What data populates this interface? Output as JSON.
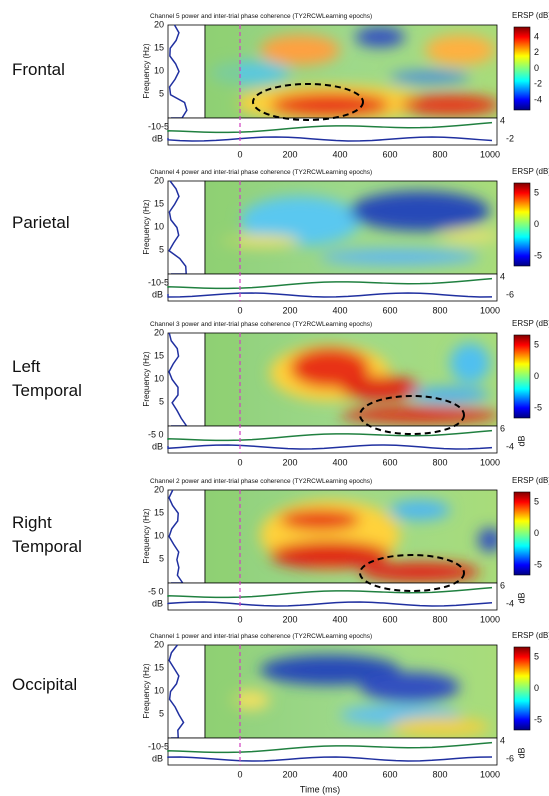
{
  "x_label": "Time (ms)",
  "panels": [
    {
      "label": [
        "Frontal"
      ],
      "title": "Channel 5 power and inter-trial phase coherence (TY2RCWLearning epochs)",
      "y_label": "Frequency (Hz)",
      "yticks": [
        "20",
        "15",
        "10",
        "5"
      ],
      "strip_ticks": "-10-5",
      "strip_unit": "dB",
      "strip_right": [
        "4",
        "-2"
      ],
      "xticks": [
        "0",
        "200",
        "400",
        "600",
        "800",
        "1000"
      ],
      "colorbar_title": "ERSP (dB)",
      "colorbar_ticks": [
        "4",
        "2",
        "0",
        "-2",
        "-4"
      ]
    },
    {
      "label": [
        "Parietal"
      ],
      "title": "Channel 4 power and inter-trial phase coherence (TY2RCWLearning epochs)",
      "y_label": "Frequency (Hz)",
      "yticks": [
        "20",
        "15",
        "10",
        "5"
      ],
      "strip_ticks": "-10-5",
      "strip_unit": "dB",
      "strip_right": [
        "4",
        "-6"
      ],
      "xticks": [
        "0",
        "200",
        "400",
        "600",
        "800",
        "1000"
      ],
      "colorbar_title": "ERSP (dB)",
      "colorbar_ticks": [
        "5",
        "0",
        "-5"
      ]
    },
    {
      "label": [
        "Left",
        "Temporal"
      ],
      "title": "Channel 3 power and inter-trial phase coherence (TY2RCWLearning epochs)",
      "y_label": "Frequency (Hz)",
      "yticks": [
        "20",
        "15",
        "10",
        "5"
      ],
      "strip_ticks": "-5 0",
      "strip_unit": "dB",
      "strip_right": [
        "6",
        "-4"
      ],
      "xticks": [
        "0",
        "200",
        "400",
        "600",
        "800",
        "1000"
      ],
      "colorbar_title": "ERSP (dB)",
      "colorbar_ticks": [
        "5",
        "0",
        "-5"
      ],
      "colorbar_unit": "dB"
    },
    {
      "label": [
        "Right",
        "Temporal"
      ],
      "title": "Channel 2 power and inter-trial phase coherence (TY2RCWLearning epochs)",
      "y_label": "Frequency (Hz)",
      "yticks": [
        "20",
        "15",
        "10",
        "5"
      ],
      "strip_ticks": "-5 0",
      "strip_unit": "dB",
      "strip_right": [
        "6",
        "-4"
      ],
      "xticks": [
        "0",
        "200",
        "400",
        "600",
        "800",
        "1000"
      ],
      "colorbar_title": "ERSP (dB)",
      "colorbar_ticks": [
        "5",
        "0",
        "-5"
      ],
      "colorbar_unit": "dB"
    },
    {
      "label": [
        "Occipital"
      ],
      "title": "Channel 1 power and inter-trial phase coherence (TY2RCWLearning epochs)",
      "y_label": "Frequency (Hz)",
      "yticks": [
        "20",
        "15",
        "10",
        "5"
      ],
      "strip_ticks": "-10-5",
      "strip_unit": "dB",
      "strip_right": [
        "4",
        "-6"
      ],
      "xticks": [
        "0",
        "200",
        "400",
        "600",
        "800",
        "1000"
      ],
      "colorbar_title": "ERSP (dB)",
      "colorbar_ticks": [
        "5",
        "0",
        "-5"
      ],
      "colorbar_unit": "dB"
    }
  ]
}
